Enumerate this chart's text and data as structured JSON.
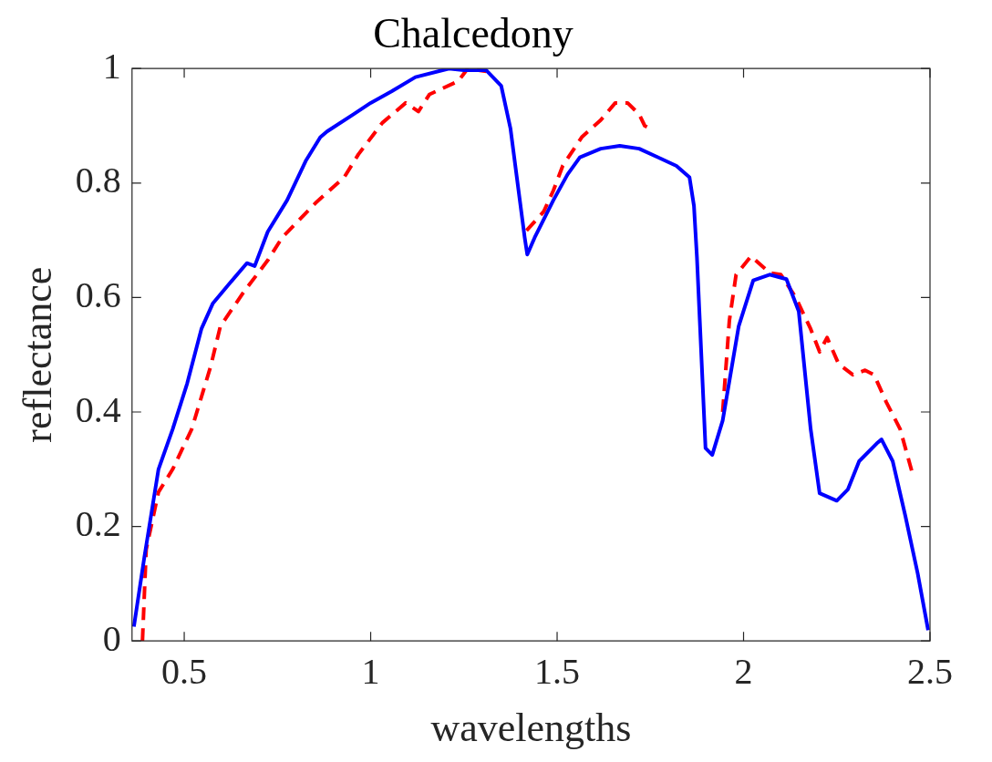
{
  "chart_data": {
    "type": "line",
    "title": "Chalcedony",
    "xlabel": "wavelengths",
    "ylabel": "reflectance",
    "xlim": [
      0.36,
      2.5
    ],
    "xticks": [
      0.5,
      1,
      1.5,
      2,
      2.5
    ],
    "ylim": [
      0,
      1
    ],
    "yticks": [
      0,
      0.2,
      0.4,
      0.6,
      0.8,
      1
    ],
    "grid": false,
    "legend": false,
    "marker": "none",
    "series": [
      {
        "color": "#0000ff",
        "line_style": "solid",
        "x": [
          0.365,
          0.393,
          0.431,
          0.469,
          0.508,
          0.546,
          0.577,
          0.622,
          0.668,
          0.689,
          0.724,
          0.776,
          0.827,
          0.865,
          0.883,
          0.954,
          1.0,
          1.056,
          1.12,
          1.21,
          1.25,
          1.31,
          1.35,
          1.375,
          1.4,
          1.413,
          1.42,
          1.44,
          1.49,
          1.528,
          1.561,
          1.617,
          1.668,
          1.72,
          1.77,
          1.82,
          1.855,
          1.867,
          1.875,
          1.898,
          1.916,
          1.944,
          1.987,
          2.026,
          2.07,
          2.115,
          2.148,
          2.18,
          2.204,
          2.25,
          2.28,
          2.31,
          2.357,
          2.37,
          2.4,
          2.434,
          2.467,
          2.495
        ],
        "values": [
          0.025,
          0.146,
          0.3,
          0.37,
          0.45,
          0.545,
          0.59,
          0.625,
          0.66,
          0.655,
          0.715,
          0.77,
          0.84,
          0.88,
          0.89,
          0.92,
          0.94,
          0.96,
          0.985,
          1.0,
          0.997,
          0.997,
          0.97,
          0.895,
          0.77,
          0.705,
          0.675,
          0.705,
          0.77,
          0.815,
          0.845,
          0.86,
          0.865,
          0.86,
          0.845,
          0.83,
          0.81,
          0.76,
          0.67,
          0.337,
          0.325,
          0.385,
          0.55,
          0.63,
          0.64,
          0.632,
          0.576,
          0.37,
          0.258,
          0.245,
          0.265,
          0.314,
          0.345,
          0.352,
          0.314,
          0.218,
          0.118,
          0.019
        ]
      },
      {
        "color": "#ff0000",
        "line_style": "dashed",
        "x": [
          0.388,
          0.398,
          0.431,
          0.469,
          0.52,
          0.571,
          0.597,
          0.66,
          0.724,
          0.763,
          0.852,
          0.929,
          0.967,
          1.031,
          1.094,
          1.128,
          1.158,
          1.235,
          1.26,
          1.31,
          1.37,
          1.418,
          1.464,
          1.49,
          1.515,
          1.566,
          1.617,
          1.656,
          1.689,
          1.72,
          1.735,
          1.75,
          1.85,
          1.944,
          1.962,
          1.98,
          2.02,
          2.07,
          2.1,
          2.14,
          2.18,
          2.204,
          2.224,
          2.255,
          2.293,
          2.326,
          2.35,
          2.383,
          2.42,
          2.454
        ],
        "values": [
          0.0,
          0.16,
          0.26,
          0.3,
          0.37,
          0.48,
          0.55,
          0.61,
          0.665,
          0.705,
          0.765,
          0.81,
          0.85,
          0.905,
          0.94,
          0.925,
          0.955,
          0.978,
          1.0,
          0.995,
          null,
          0.717,
          0.75,
          0.787,
          0.83,
          0.88,
          0.91,
          0.94,
          0.94,
          0.92,
          0.9,
          0.895,
          null,
          0.4,
          0.56,
          0.64,
          0.672,
          0.643,
          0.64,
          0.6,
          0.545,
          0.505,
          0.53,
          0.484,
          0.465,
          0.473,
          0.465,
          0.417,
          0.37,
          0.29
        ]
      }
    ]
  }
}
